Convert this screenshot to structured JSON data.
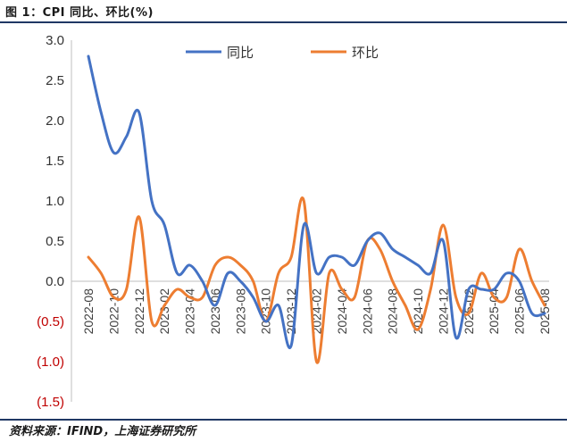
{
  "header": {
    "title": "图 1：CPI 同比、环比(%)"
  },
  "footer": {
    "source": "资料来源：IFIND，上海证券研究所"
  },
  "chart_data": {
    "type": "line",
    "title": "图 1：CPI 同比、环比(%)",
    "xlabel": "",
    "ylabel": "",
    "ylim": [
      -1.5,
      3.0
    ],
    "yticks": [
      "3.0",
      "2.5",
      "2.0",
      "1.5",
      "1.0",
      "0.5",
      "0.0",
      "(0.5)",
      "(1.0)",
      "(1.5)"
    ],
    "ytick_values": [
      3.0,
      2.5,
      2.0,
      1.5,
      1.0,
      0.5,
      0.0,
      -0.5,
      -1.0,
      -1.5
    ],
    "negative_tick_color": "#c00000",
    "grid": false,
    "legend_position": "top",
    "x_tick_labels": [
      "2022-08",
      "2022-10",
      "2022-12",
      "2023-02",
      "2023-04",
      "2023-06",
      "2023-08",
      "2023-10",
      "2023-12",
      "2024-02",
      "2024-04",
      "2024-06",
      "2024-08",
      "2024-10",
      "2024-12",
      "2025-02",
      "2025-04",
      "2025-06",
      "2025-08"
    ],
    "x": [
      "2022-08",
      "2022-09",
      "2022-10",
      "2022-11",
      "2022-12",
      "2023-01",
      "2023-02",
      "2023-03",
      "2023-04",
      "2023-05",
      "2023-06",
      "2023-07",
      "2023-08",
      "2023-09",
      "2023-10",
      "2023-11",
      "2023-12",
      "2024-01",
      "2024-02",
      "2024-03",
      "2024-04",
      "2024-05",
      "2024-06",
      "2024-07",
      "2024-08",
      "2024-09",
      "2024-10",
      "2024-11",
      "2024-12",
      "2025-01",
      "2025-02",
      "2025-03",
      "2025-04",
      "2025-05",
      "2025-06",
      "2025-07",
      "2025-08"
    ],
    "series": [
      {
        "name": "同比",
        "color": "#4472c4",
        "values": [
          2.8,
          2.1,
          1.6,
          1.8,
          2.1,
          1.0,
          0.7,
          0.1,
          0.2,
          0.0,
          -0.3,
          0.1,
          0.0,
          -0.2,
          -0.5,
          -0.3,
          -0.8,
          0.7,
          0.1,
          0.3,
          0.3,
          0.2,
          0.5,
          0.6,
          0.4,
          0.3,
          0.2,
          0.1,
          0.5,
          -0.7,
          -0.1,
          -0.1,
          -0.1,
          0.1,
          0.0,
          -0.4,
          -0.4
        ]
      },
      {
        "name": "环比",
        "color": "#ed7d31",
        "values": [
          0.3,
          0.1,
          -0.2,
          -0.1,
          0.8,
          -0.5,
          -0.3,
          -0.1,
          -0.2,
          -0.2,
          0.2,
          0.3,
          0.2,
          0.0,
          -0.5,
          0.1,
          0.3,
          1.0,
          -1.0,
          0.1,
          -0.1,
          -0.2,
          0.5,
          0.4,
          0.0,
          -0.3,
          -0.6,
          -0.1,
          0.7,
          -0.2,
          -0.4,
          0.1,
          -0.2,
          -0.2,
          0.4,
          0.0,
          -0.3
        ]
      }
    ]
  }
}
